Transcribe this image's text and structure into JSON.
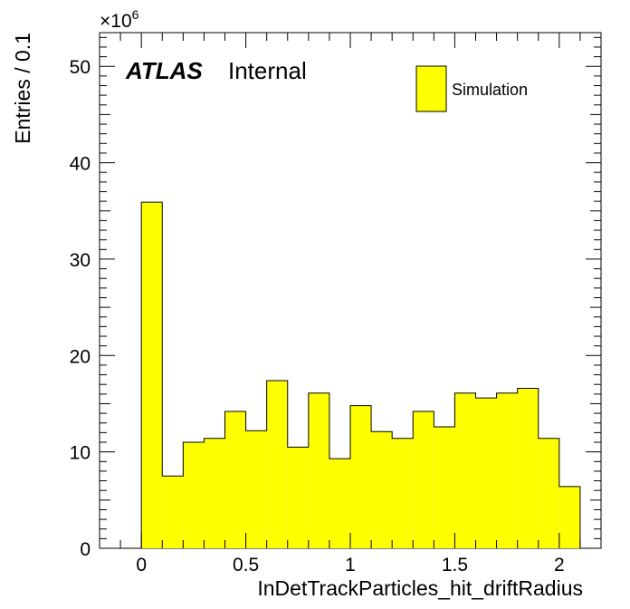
{
  "chart_data": {
    "type": "bar",
    "subtype": "step-histogram",
    "title": "",
    "xlabel": "InDetTrackParticles_hit_driftRadius",
    "ylabel": "Entries / 0.1",
    "y_multiplier": "×10",
    "y_multiplier_exp": "6",
    "xlim": [
      -0.2,
      2.2
    ],
    "ylim": [
      0,
      53.5
    ],
    "x_ticks": [
      0,
      0.5,
      1,
      1.5,
      2
    ],
    "x_tick_labels": [
      "0",
      "0.5",
      "1",
      "1.5",
      "2"
    ],
    "y_ticks": [
      0,
      10,
      20,
      30,
      40,
      50
    ],
    "y_tick_labels": [
      "0",
      "10",
      "20",
      "30",
      "40",
      "50"
    ],
    "bin_edges": [
      0,
      0.1,
      0.2,
      0.3,
      0.4,
      0.5,
      0.6,
      0.7,
      0.8,
      0.9,
      1.0,
      1.1,
      1.2,
      1.3,
      1.4,
      1.5,
      1.6,
      1.7,
      1.8,
      1.9,
      2.0,
      2.1
    ],
    "series": [
      {
        "name": "Simulation",
        "color": "#ffff00",
        "values": [
          35.9,
          7.5,
          11.0,
          11.4,
          14.2,
          12.2,
          17.4,
          10.5,
          16.1,
          9.3,
          14.8,
          12.1,
          11.4,
          14.2,
          12.6,
          16.1,
          15.6,
          16.1,
          16.6,
          11.4,
          6.4
        ]
      }
    ],
    "legend": {
      "position": "top-right"
    },
    "grid": false
  },
  "labels": {
    "atlas": "ATLAS",
    "internal": "Internal"
  },
  "colors": {
    "fill": "#ffff00",
    "line": "#000000",
    "background": "#ffffff"
  }
}
